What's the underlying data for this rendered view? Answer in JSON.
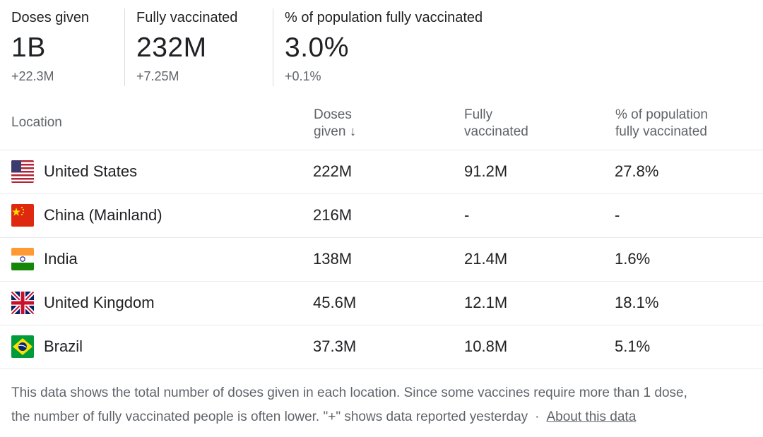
{
  "stats": [
    {
      "label": "Doses given",
      "value": "1B",
      "change": "+22.3M"
    },
    {
      "label": "Fully vaccinated",
      "value": "232M",
      "change": "+7.25M"
    },
    {
      "label": "% of population fully vaccinated",
      "value": "3.0%",
      "change": "+0.1%"
    }
  ],
  "table": {
    "headers": {
      "location": "Location",
      "doses_l1": "Doses",
      "doses_l2": "given",
      "sort_arrow": "↓",
      "fully_l1": "Fully",
      "fully_l2": "vaccinated",
      "pct_l1": "% of population",
      "pct_l2": "fully vaccinated"
    },
    "rows": [
      {
        "flag": "us-flag-icon",
        "location": "United States",
        "doses": "222M",
        "fully": "91.2M",
        "pct": "27.8%"
      },
      {
        "flag": "china-flag-icon",
        "location": "China (Mainland)",
        "doses": "216M",
        "fully": "-",
        "pct": "-"
      },
      {
        "flag": "india-flag-icon",
        "location": "India",
        "doses": "138M",
        "fully": "21.4M",
        "pct": "1.6%"
      },
      {
        "flag": "uk-flag-icon",
        "location": "United Kingdom",
        "doses": "45.6M",
        "fully": "12.1M",
        "pct": "18.1%"
      },
      {
        "flag": "brazil-flag-icon",
        "location": "Brazil",
        "doses": "37.3M",
        "fully": "10.8M",
        "pct": "5.1%"
      }
    ]
  },
  "footer": {
    "line1": "This data shows the total number of doses given in each location. Since some vaccines require more than 1 dose,",
    "line2": "the number of fully vaccinated people is often lower. \"+\" shows data reported yesterday",
    "separator": "·",
    "link": "About this data"
  }
}
